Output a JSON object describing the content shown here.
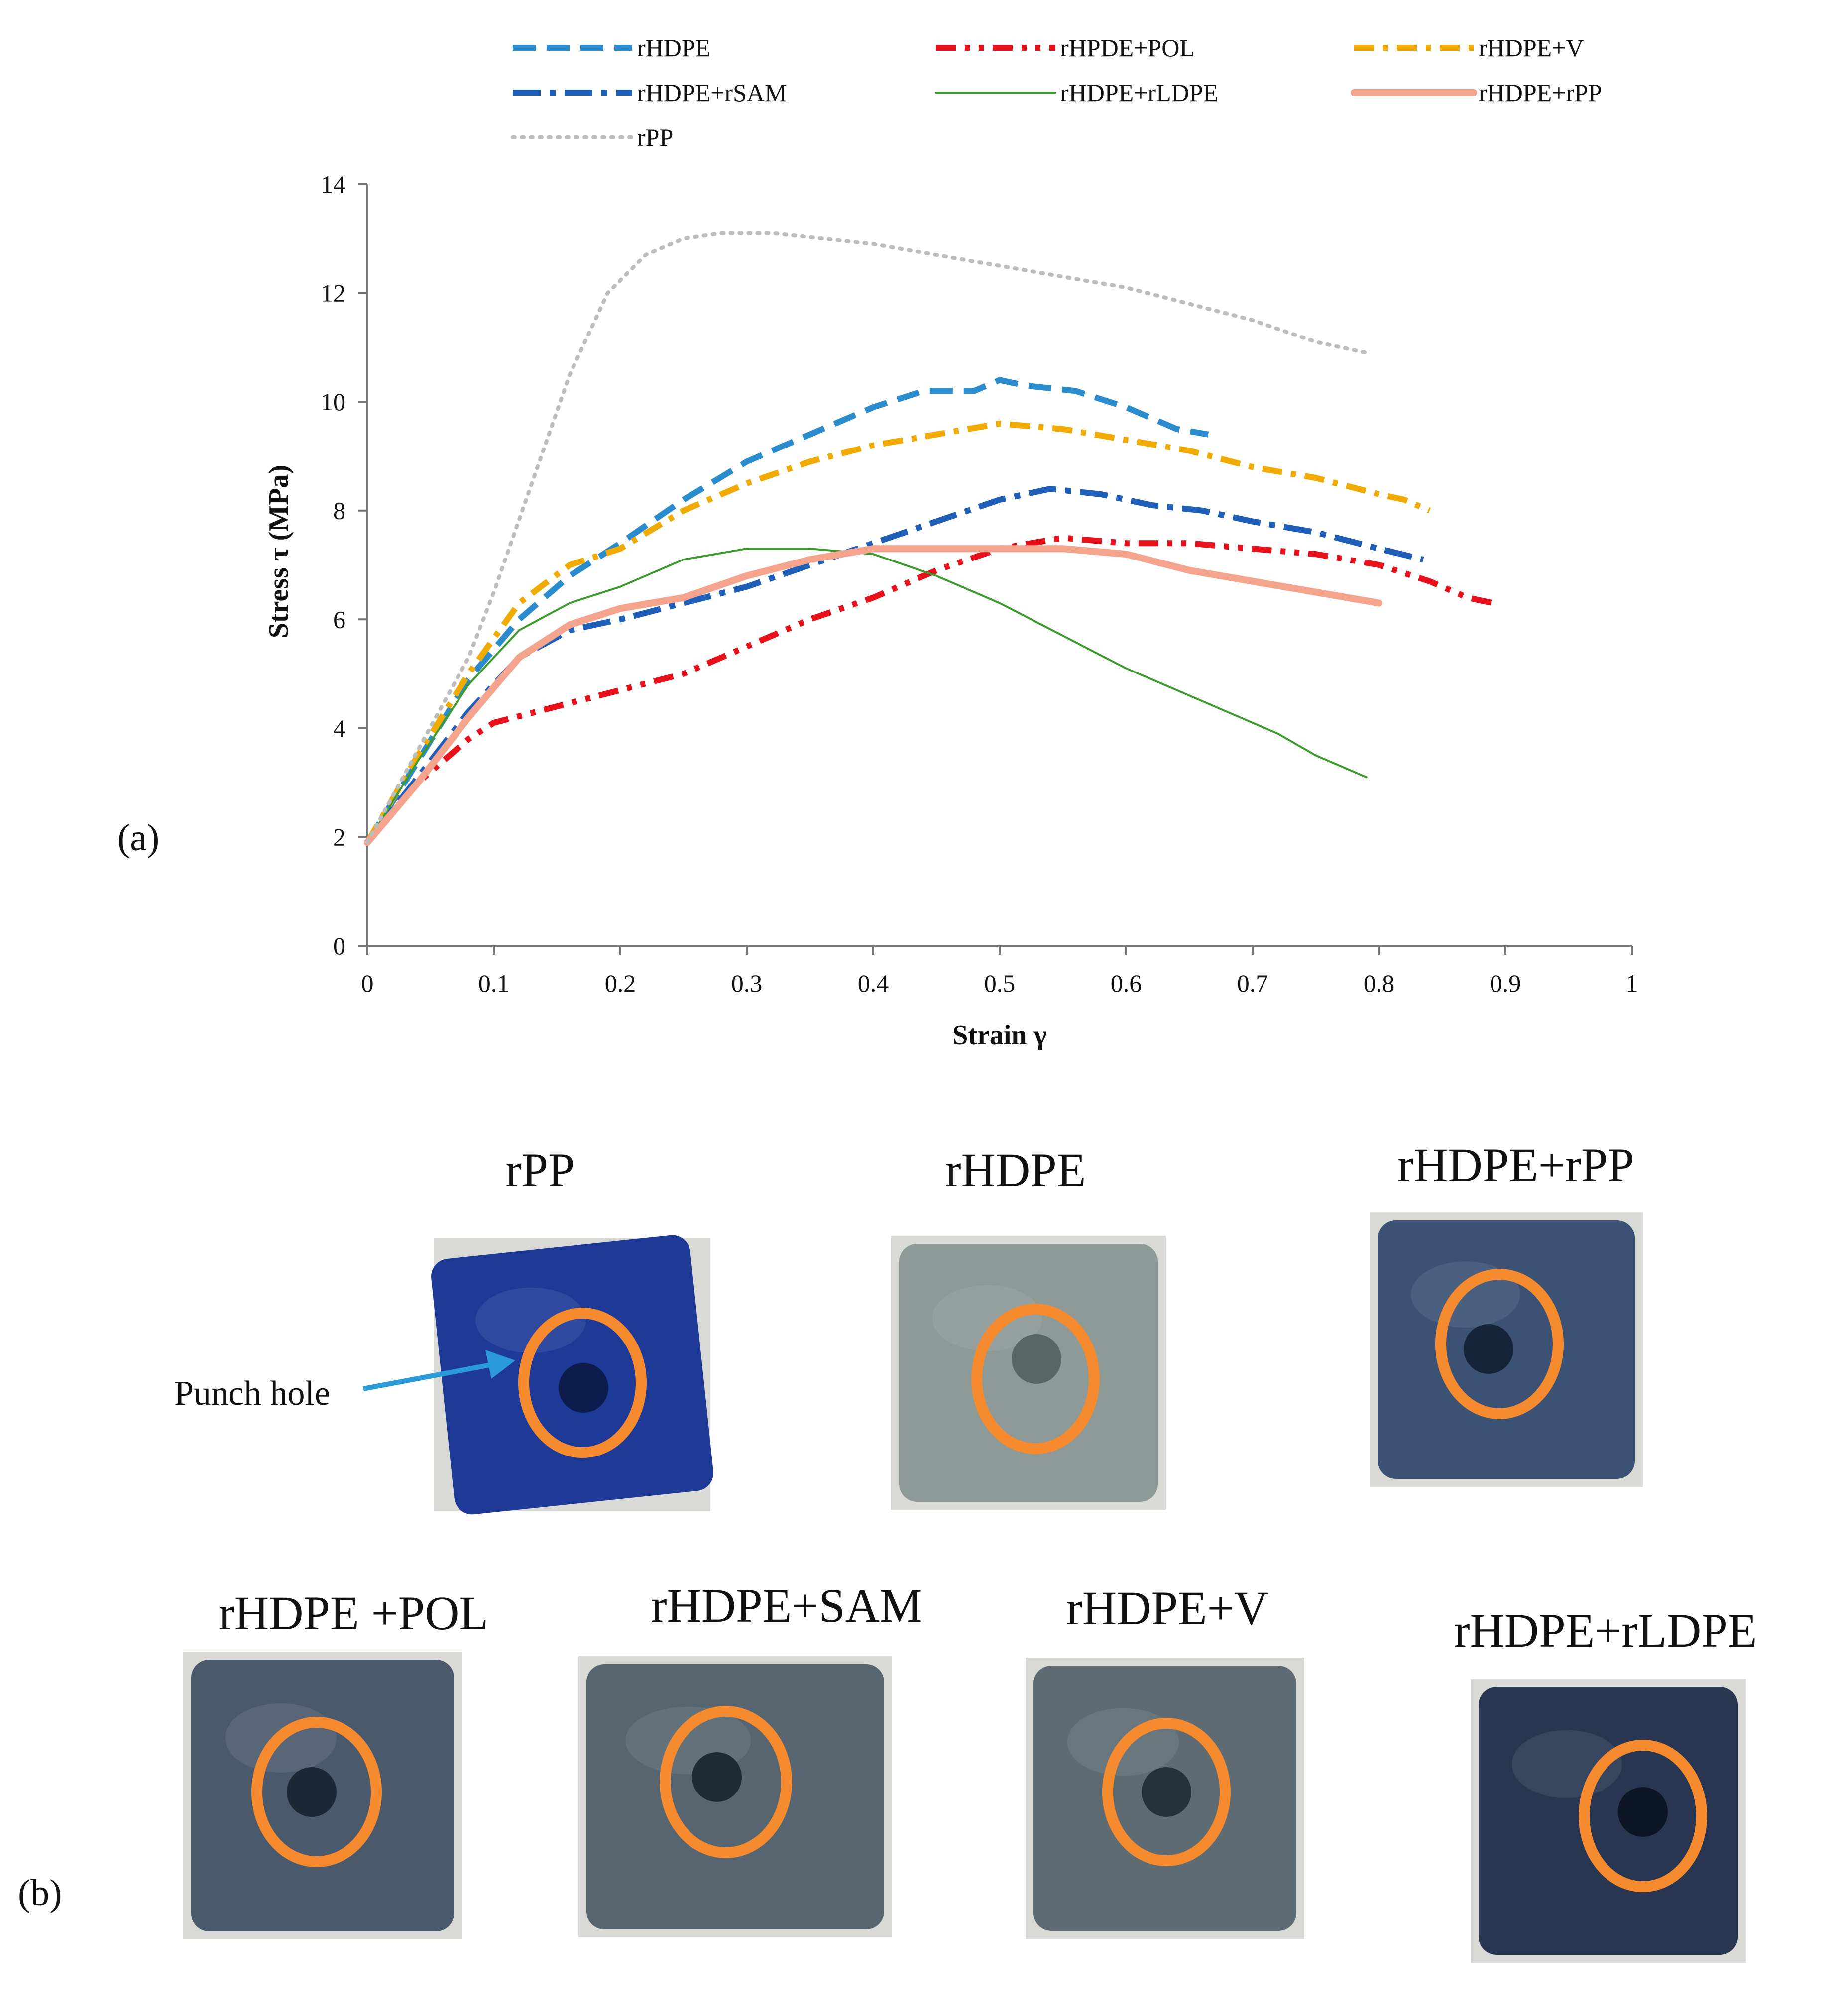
{
  "panel_a_label": "(a)",
  "panel_b_label": "(b)",
  "chart_data": {
    "type": "line",
    "title": "",
    "xlabel": "Strain γ",
    "ylabel": "Stress τ (MPa)",
    "xlim": [
      0,
      1
    ],
    "ylim": [
      0,
      14
    ],
    "xticks": [
      "0",
      "0.1",
      "0.2",
      "0.3",
      "0.4",
      "0.5",
      "0.6",
      "0.7",
      "0.8",
      "0.9",
      "1"
    ],
    "yticks": [
      "0",
      "2",
      "4",
      "6",
      "8",
      "10",
      "12",
      "14"
    ],
    "grid": false,
    "legend_position": "top",
    "series": [
      {
        "name": "rHDPE",
        "color": "#2a8ccc",
        "style": "dash",
        "x": [
          0,
          0.04,
          0.08,
          0.12,
          0.16,
          0.2,
          0.25,
          0.3,
          0.35,
          0.4,
          0.44,
          0.48,
          0.5,
          0.52,
          0.56,
          0.6,
          0.64,
          0.665
        ],
        "y": [
          1.9,
          3.4,
          4.9,
          6.0,
          6.8,
          7.4,
          8.2,
          8.9,
          9.4,
          9.9,
          10.2,
          10.2,
          10.4,
          10.3,
          10.2,
          9.9,
          9.5,
          9.4
        ]
      },
      {
        "name": "rHPDE+POL",
        "color": "#e8101a",
        "style": "dashdotdot",
        "x": [
          0,
          0.04,
          0.08,
          0.1,
          0.15,
          0.2,
          0.25,
          0.3,
          0.35,
          0.4,
          0.45,
          0.5,
          0.55,
          0.6,
          0.65,
          0.7,
          0.75,
          0.8,
          0.84,
          0.87,
          0.89
        ],
        "y": [
          1.9,
          3.0,
          3.8,
          4.1,
          4.4,
          4.7,
          5.0,
          5.5,
          6.0,
          6.4,
          6.9,
          7.3,
          7.5,
          7.4,
          7.4,
          7.3,
          7.2,
          7.0,
          6.7,
          6.4,
          6.3
        ]
      },
      {
        "name": "rHDPE+V",
        "color": "#f0aa00",
        "style": "dashdot",
        "x": [
          0,
          0.04,
          0.08,
          0.12,
          0.16,
          0.2,
          0.25,
          0.3,
          0.35,
          0.4,
          0.45,
          0.5,
          0.55,
          0.6,
          0.65,
          0.7,
          0.75,
          0.8,
          0.82,
          0.84
        ],
        "y": [
          1.9,
          3.5,
          5.0,
          6.3,
          7.0,
          7.3,
          8.0,
          8.5,
          8.9,
          9.2,
          9.4,
          9.6,
          9.5,
          9.3,
          9.1,
          8.8,
          8.6,
          8.3,
          8.2,
          8.0
        ]
      },
      {
        "name": "rHDPE+rSAM",
        "color": "#1f5fb8",
        "style": "longdashdot",
        "x": [
          0,
          0.04,
          0.08,
          0.12,
          0.16,
          0.2,
          0.25,
          0.3,
          0.35,
          0.4,
          0.45,
          0.5,
          0.54,
          0.58,
          0.62,
          0.66,
          0.7,
          0.75,
          0.8,
          0.835
        ],
        "y": [
          1.9,
          3.1,
          4.3,
          5.3,
          5.8,
          6.0,
          6.3,
          6.6,
          7.0,
          7.4,
          7.8,
          8.2,
          8.4,
          8.3,
          8.1,
          8.0,
          7.8,
          7.6,
          7.3,
          7.1
        ]
      },
      {
        "name": "rHDPE+rLDPE",
        "color": "#3d9a2e",
        "style": "solid-thin",
        "x": [
          0,
          0.04,
          0.08,
          0.12,
          0.16,
          0.2,
          0.25,
          0.3,
          0.35,
          0.4,
          0.45,
          0.5,
          0.55,
          0.6,
          0.65,
          0.7,
          0.72,
          0.75,
          0.79
        ],
        "y": [
          1.9,
          3.4,
          4.8,
          5.8,
          6.3,
          6.6,
          7.1,
          7.3,
          7.3,
          7.2,
          6.8,
          6.3,
          5.7,
          5.1,
          4.6,
          4.1,
          3.9,
          3.5,
          3.1
        ]
      },
      {
        "name": "rHDPE+rPP",
        "color": "#f4a38c",
        "style": "solid-thick",
        "x": [
          0,
          0.04,
          0.08,
          0.12,
          0.16,
          0.2,
          0.25,
          0.3,
          0.35,
          0.4,
          0.45,
          0.5,
          0.55,
          0.6,
          0.65,
          0.7,
          0.75,
          0.8
        ],
        "y": [
          1.9,
          3.0,
          4.2,
          5.3,
          5.9,
          6.2,
          6.4,
          6.8,
          7.1,
          7.3,
          7.3,
          7.3,
          7.3,
          7.2,
          6.9,
          6.7,
          6.5,
          6.3
        ]
      },
      {
        "name": "rPP",
        "color": "#bdbdbd",
        "style": "dot",
        "x": [
          0,
          0.04,
          0.08,
          0.1,
          0.13,
          0.16,
          0.19,
          0.22,
          0.25,
          0.28,
          0.32,
          0.36,
          0.4,
          0.45,
          0.5,
          0.55,
          0.6,
          0.65,
          0.7,
          0.75,
          0.79
        ],
        "y": [
          1.9,
          3.6,
          5.3,
          6.5,
          8.5,
          10.5,
          12.0,
          12.7,
          13.0,
          13.1,
          13.1,
          13.0,
          12.9,
          12.7,
          12.5,
          12.3,
          12.1,
          11.8,
          11.5,
          11.1,
          10.9
        ]
      }
    ]
  },
  "photos": {
    "punch_label": "Punch hole",
    "samples": [
      {
        "title": "rPP",
        "color": "#1e3a96",
        "hole_color": "#0d1d4d"
      },
      {
        "title": "rHDPE",
        "color": "#8e9a97",
        "hole_color": "#5a6664"
      },
      {
        "title": "rHDPE+rPP",
        "color": "#3c5275",
        "hole_color": "#16243a"
      },
      {
        "title": "rHDPE +POL",
        "color": "#4a5a6c",
        "hole_color": "#1c2836"
      },
      {
        "title": "rHDPE+SAM",
        "color": "#56656f",
        "hole_color": "#1f2b33"
      },
      {
        "title": "rHDPE+V",
        "color": "#5e6b72",
        "hole_color": "#26323a"
      },
      {
        "title": "rHDPE+rLDPE",
        "color": "#283651",
        "hole_color": "#0e1626"
      }
    ],
    "ring_color": "#f58a2e",
    "arrow_color": "#2a9ad8"
  }
}
